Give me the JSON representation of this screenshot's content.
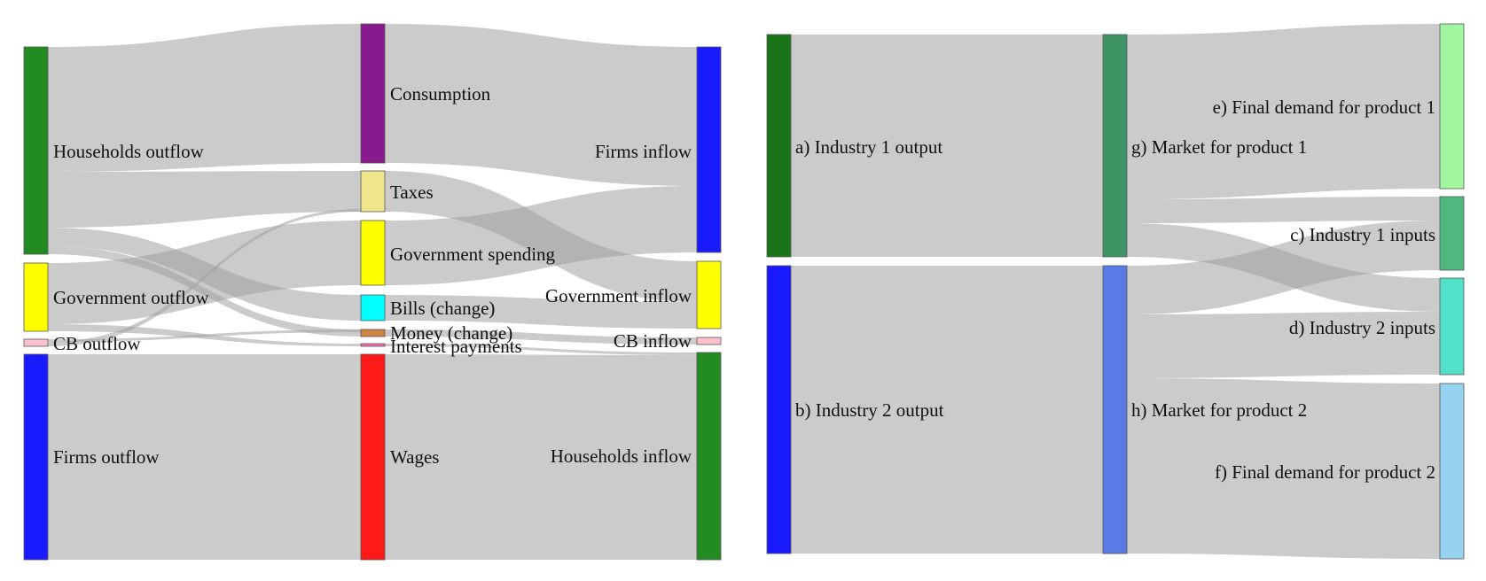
{
  "diagrams": [
    {
      "id": "money-flows",
      "nodes": [
        {
          "id": "households-outflow",
          "label": "Households outflow",
          "color": "#228b22"
        },
        {
          "id": "government-outflow",
          "label": "Government outflow",
          "color": "#ffff00"
        },
        {
          "id": "cb-outflow",
          "label": "CB outflow",
          "color": "#ffc0cb"
        },
        {
          "id": "firms-outflow",
          "label": "Firms outflow",
          "color": "#1a1aff"
        },
        {
          "id": "consumption",
          "label": "Consumption",
          "color": "#881a8e"
        },
        {
          "id": "taxes",
          "label": "Taxes",
          "color": "#f0e68c"
        },
        {
          "id": "government-spending",
          "label": "Government spending",
          "color": "#ffff00"
        },
        {
          "id": "bills-change",
          "label": "Bills (change)",
          "color": "#00ffff"
        },
        {
          "id": "money-change",
          "label": "Money (change)",
          "color": "#cd853f"
        },
        {
          "id": "interest-payments",
          "label": "Interest payments",
          "color": "#ff69b4"
        },
        {
          "id": "wages",
          "label": "Wages",
          "color": "#ff1a1a"
        },
        {
          "id": "firms-inflow",
          "label": "Firms inflow",
          "color": "#1a1aff"
        },
        {
          "id": "government-inflow",
          "label": "Government inflow",
          "color": "#ffff00"
        },
        {
          "id": "cb-inflow",
          "label": "CB inflow",
          "color": "#ffc0cb"
        },
        {
          "id": "households-inflow",
          "label": "Households inflow",
          "color": "#228b22"
        }
      ]
    },
    {
      "id": "input-output",
      "nodes": [
        {
          "id": "industry-1-output",
          "label": "a) Industry 1 output",
          "color": "#1a751a"
        },
        {
          "id": "industry-2-output",
          "label": "b) Industry 2 output",
          "color": "#1a1aff"
        },
        {
          "id": "market-product-1",
          "label": "g) Market for product 1",
          "color": "#3f9466"
        },
        {
          "id": "market-product-2",
          "label": "h) Market for product 2",
          "color": "#5a7ae6"
        },
        {
          "id": "final-demand-1",
          "label": "e) Final demand for product 1",
          "color": "#a0f7a0"
        },
        {
          "id": "industry-1-inputs",
          "label": "c) Industry 1 inputs",
          "color": "#4fb87f"
        },
        {
          "id": "industry-2-inputs",
          "label": "d) Industry 2 inputs",
          "color": "#52e0c9"
        },
        {
          "id": "final-demand-2",
          "label": "f) Final demand for product 2",
          "color": "#94d2ef"
        }
      ]
    }
  ]
}
